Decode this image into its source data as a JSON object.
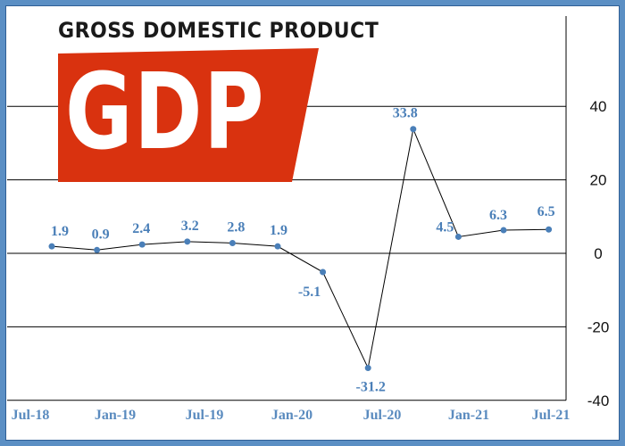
{
  "logo": {
    "title": "GROSS DOMESTIC PRODUCT",
    "text": "GDP"
  },
  "colors": {
    "border": "#5b8fc4",
    "line": "#000000",
    "point": "#4a7fb8",
    "label": "#4a7fb8",
    "badge": "#d9320f"
  },
  "chart_data": {
    "type": "line",
    "title": "",
    "xlabel": "",
    "ylabel": "",
    "x_tick_labels": [
      "Jul-18",
      "Jan-19",
      "Jul-19",
      "Jan-20",
      "Jul-20",
      "Jan-21",
      "Jul-21"
    ],
    "y_ticks": [
      -40,
      -20,
      0,
      20,
      40
    ],
    "ylim": [
      -40,
      55
    ],
    "grid": "horizontal",
    "y_axis_side": "right",
    "series": [
      {
        "values": [
          1.9,
          0.9,
          2.4,
          3.2,
          2.8,
          1.9,
          -5.1,
          -31.2,
          33.8,
          4.5,
          6.3,
          6.5
        ],
        "labels": [
          "1.9",
          "0.9",
          "2.4",
          "3.2",
          "2.8",
          "1.9",
          "-5.1",
          "-31.2",
          "33.8",
          "4.5",
          "6.3",
          "6.5"
        ]
      }
    ]
  }
}
